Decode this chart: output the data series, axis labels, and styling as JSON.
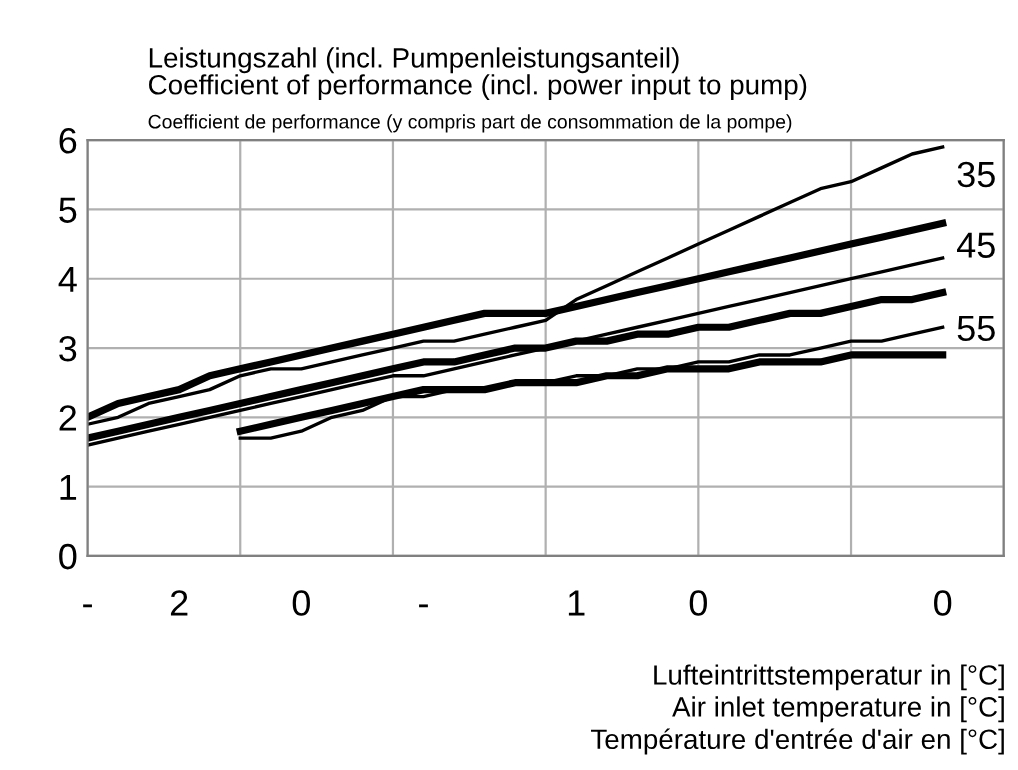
{
  "chart_data": {
    "type": "line",
    "title": "Leistungszahl (incl. Pumpenleistungsanteil)\nCoefficient of performance (incl. power input to pump)",
    "subtitle": "Coefficient de performance (y compris part de consommation de la pompe)",
    "xlabel": "Lufteintrittstemperatur in [°C]\nAir inlet temperature in [°C]\nTempérature d'entrée d'air en [°C]",
    "categories": [
      "-",
      null,
      null,
      "2",
      null,
      null,
      null,
      "0",
      null,
      null,
      null,
      "-",
      null,
      null,
      null,
      null,
      "1",
      null,
      null,
      null,
      "0",
      null,
      null,
      null,
      null,
      null,
      null,
      null,
      "0",
      null,
      null
    ],
    "ylim": [
      0,
      6
    ],
    "yticks": [
      0,
      1,
      2,
      3,
      4,
      5,
      6
    ],
    "grid": true,
    "line_style": "solid",
    "marker": "none",
    "series": [
      {
        "color": "#000000",
        "values": [
          2.0,
          2.2,
          2.3,
          2.4,
          2.6,
          2.7,
          2.8,
          2.9,
          3.0,
          3.1,
          3.2,
          3.3,
          3.4,
          3.5,
          3.5,
          3.5,
          3.6,
          3.7,
          3.8,
          3.9,
          4.0,
          4.1,
          4.2,
          4.3,
          4.4,
          4.5,
          4.6,
          4.7,
          4.8,
          null,
          null
        ]
      },
      {
        "color": "#000000",
        "values": [
          1.9,
          2.0,
          2.2,
          2.3,
          2.4,
          2.6,
          2.7,
          2.7,
          2.8,
          2.9,
          3.0,
          3.1,
          3.1,
          3.2,
          3.3,
          3.4,
          3.7,
          3.9,
          4.1,
          4.3,
          4.5,
          4.7,
          4.9,
          5.1,
          5.3,
          5.4,
          5.6,
          5.8,
          5.9,
          null,
          null
        ]
      },
      {
        "color": "#000000",
        "values": [
          1.7,
          1.8,
          1.9,
          2.0,
          2.1,
          2.2,
          2.3,
          2.4,
          2.5,
          2.6,
          2.7,
          2.8,
          2.8,
          2.9,
          3.0,
          3.0,
          3.1,
          3.1,
          3.2,
          3.2,
          3.3,
          3.3,
          3.4,
          3.5,
          3.5,
          3.6,
          3.7,
          3.7,
          3.8,
          null,
          null
        ]
      },
      {
        "color": "#000000",
        "values": [
          1.6,
          1.7,
          1.8,
          1.9,
          2.0,
          2.1,
          2.2,
          2.3,
          2.4,
          2.5,
          2.6,
          2.6,
          2.7,
          2.8,
          2.9,
          3.0,
          3.1,
          3.2,
          3.3,
          3.4,
          3.5,
          3.6,
          3.7,
          3.8,
          3.9,
          4.0,
          4.1,
          4.2,
          4.3,
          null,
          null
        ]
      },
      {
        "color": "#000000",
        "values": [
          null,
          null,
          null,
          null,
          null,
          1.8,
          1.9,
          2.0,
          2.1,
          2.2,
          2.3,
          2.4,
          2.4,
          2.4,
          2.5,
          2.5,
          2.5,
          2.6,
          2.6,
          2.7,
          2.7,
          2.7,
          2.8,
          2.8,
          2.8,
          2.9,
          2.9,
          2.9,
          2.9,
          null,
          null
        ]
      },
      {
        "color": "#000000",
        "values": [
          null,
          null,
          null,
          null,
          null,
          1.7,
          1.7,
          1.8,
          2.0,
          2.1,
          2.3,
          2.3,
          2.4,
          2.4,
          2.5,
          2.5,
          2.6,
          2.6,
          2.7,
          2.7,
          2.8,
          2.8,
          2.9,
          2.9,
          3.0,
          3.1,
          3.1,
          3.2,
          3.3,
          null,
          null
        ]
      }
    ],
    "annotations": [
      "35",
      "45",
      "55"
    ]
  }
}
